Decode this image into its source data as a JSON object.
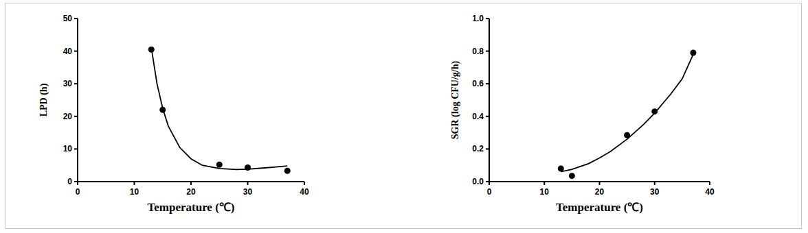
{
  "chart_data": [
    {
      "type": "scatter",
      "x_label": "Temperature (℃)",
      "y_label": "LPD (h)",
      "xlim": [
        0,
        40
      ],
      "xticks": [
        0,
        10,
        20,
        30,
        40
      ],
      "ylim": [
        0,
        50
      ],
      "yticks": [
        0,
        10,
        20,
        30,
        40,
        50
      ],
      "grid": false,
      "series": [
        {
          "type": "scatter",
          "marker": "circle",
          "color": "#000000",
          "x": [
            13,
            15,
            25,
            30,
            37
          ],
          "values": [
            40.5,
            22,
            5.2,
            4.3,
            3.3
          ]
        },
        {
          "type": "line",
          "line_style": "solid",
          "color": "#000000",
          "x": [
            13,
            14,
            15,
            16,
            18,
            20,
            22,
            25,
            28,
            30,
            33,
            35,
            37
          ],
          "values": [
            41,
            30,
            22.5,
            17,
            10.5,
            7,
            5,
            4,
            3.7,
            3.8,
            4.2,
            4.5,
            4.8
          ]
        }
      ]
    },
    {
      "type": "scatter",
      "x_label": "Temperature (℃)",
      "y_label": "SGR (log CFU/g/h)",
      "xlim": [
        0,
        40
      ],
      "xticks": [
        0,
        10,
        20,
        30,
        40
      ],
      "ylim": [
        0,
        1.0
      ],
      "yticks": [
        {
          "value": 0,
          "label": "0.0"
        },
        0.2,
        0.4,
        0.6,
        0.8,
        {
          "value": 1.0,
          "label": "1.0"
        }
      ],
      "grid": false,
      "series": [
        {
          "type": "scatter",
          "marker": "circle",
          "color": "#000000",
          "x": [
            13,
            15,
            25,
            30,
            37
          ],
          "values": [
            0.08,
            0.035,
            0.285,
            0.43,
            0.79
          ]
        },
        {
          "type": "line",
          "line_style": "solid",
          "color": "#000000",
          "x": [
            13,
            15,
            18,
            20,
            22,
            25,
            28,
            30,
            33,
            35,
            37
          ],
          "values": [
            0.06,
            0.075,
            0.11,
            0.145,
            0.185,
            0.26,
            0.35,
            0.42,
            0.54,
            0.63,
            0.78
          ]
        }
      ]
    }
  ]
}
